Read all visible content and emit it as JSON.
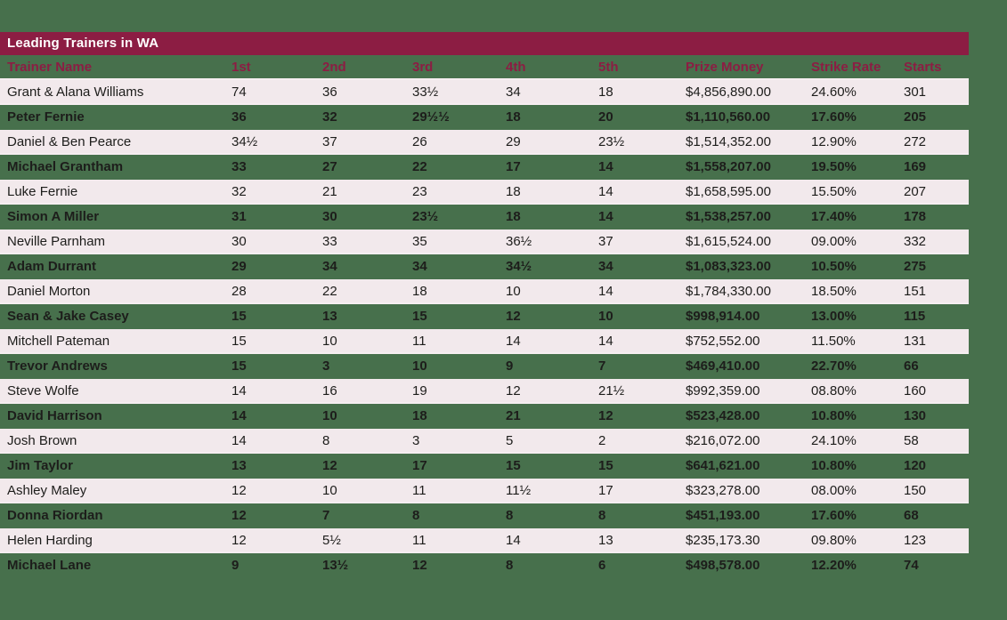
{
  "page": {
    "background_color": "#47704C",
    "accent_color": "#8C1D43",
    "row_stripe_color": "#F2E9EC"
  },
  "table": {
    "title": "Leading Trainers in WA",
    "columns": [
      "Trainer Name",
      "1st",
      "2nd",
      "3rd",
      "4th",
      "5th",
      "Prize Money",
      "Strike Rate",
      "Starts"
    ],
    "rows": [
      [
        "Grant & Alana Williams",
        "74",
        "36",
        "33½",
        "34",
        "18",
        "$4,856,890.00",
        "24.60%",
        "301"
      ],
      [
        "Peter Fernie",
        "36",
        "32",
        "29½½",
        "18",
        "20",
        "$1,110,560.00",
        "17.60%",
        "205"
      ],
      [
        "Daniel & Ben Pearce",
        "34½",
        "37",
        "26",
        "29",
        "23½",
        "$1,514,352.00",
        "12.90%",
        "272"
      ],
      [
        "Michael Grantham",
        "33",
        "27",
        "22",
        "17",
        "14",
        "$1,558,207.00",
        "19.50%",
        "169"
      ],
      [
        "Luke Fernie",
        "32",
        "21",
        "23",
        "18",
        "14",
        "$1,658,595.00",
        "15.50%",
        "207"
      ],
      [
        "Simon A Miller",
        "31",
        "30",
        "23½",
        "18",
        "14",
        "$1,538,257.00",
        "17.40%",
        "178"
      ],
      [
        "Neville Parnham",
        "30",
        "33",
        "35",
        "36½",
        "37",
        "$1,615,524.00",
        "09.00%",
        "332"
      ],
      [
        "Adam Durrant",
        "29",
        "34",
        "34",
        "34½",
        "34",
        "$1,083,323.00",
        "10.50%",
        "275"
      ],
      [
        "Daniel Morton",
        "28",
        "22",
        "18",
        "10",
        "14",
        "$1,784,330.00",
        "18.50%",
        "151"
      ],
      [
        "Sean & Jake Casey",
        "15",
        "13",
        "15",
        "12",
        "10",
        "$998,914.00",
        "13.00%",
        "115"
      ],
      [
        "Mitchell Pateman",
        "15",
        "10",
        "11",
        "14",
        "14",
        "$752,552.00",
        "11.50%",
        "131"
      ],
      [
        "Trevor Andrews",
        "15",
        "3",
        "10",
        "9",
        "7",
        "$469,410.00",
        "22.70%",
        "66"
      ],
      [
        "Steve Wolfe",
        "14",
        "16",
        "19",
        "12",
        "21½",
        "$992,359.00",
        "08.80%",
        "160"
      ],
      [
        "David Harrison",
        "14",
        "10",
        "18",
        "21",
        "12",
        "$523,428.00",
        "10.80%",
        "130"
      ],
      [
        "Josh Brown",
        "14",
        "8",
        "3",
        "5",
        "2",
        "$216,072.00",
        "24.10%",
        "58"
      ],
      [
        "Jim Taylor",
        "13",
        "12",
        "17",
        "15",
        "15",
        "$641,621.00",
        "10.80%",
        "120"
      ],
      [
        "Ashley Maley",
        "12",
        "10",
        "11",
        "11½",
        "17",
        "$323,278.00",
        "08.00%",
        "150"
      ],
      [
        "Donna Riordan",
        "12",
        "7",
        "8",
        "8",
        "8",
        "$451,193.00",
        "17.60%",
        "68"
      ],
      [
        "Helen Harding",
        "12",
        "5½",
        "11",
        "14",
        "13",
        "$235,173.30",
        "09.80%",
        "123"
      ],
      [
        "Michael Lane",
        "9",
        "13½",
        "12",
        "8",
        "6",
        "$498,578.00",
        "12.20%",
        "74"
      ]
    ]
  }
}
